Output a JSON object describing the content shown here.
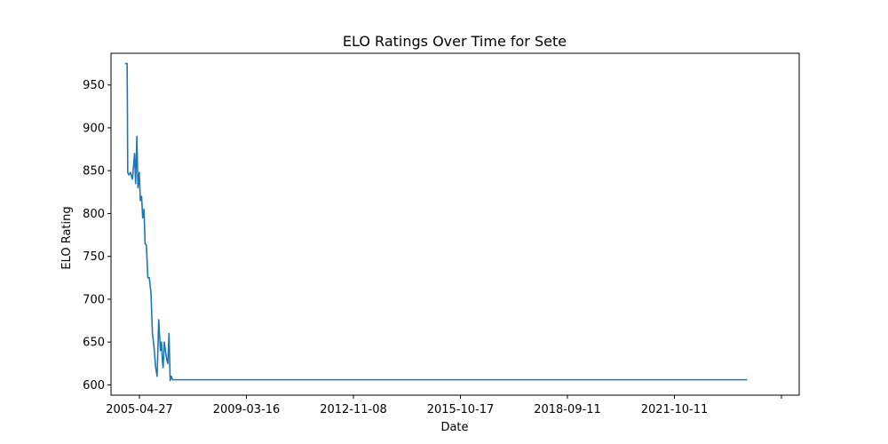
{
  "chart_data": {
    "type": "line",
    "title": "ELO Ratings Over Time for Sete",
    "xlabel": "Date",
    "ylabel": "ELO Rating",
    "x_tick_labels": [
      "2005-04-27",
      "2009-03-16",
      "2012-11-08",
      "2015-10-17",
      "2018-09-11",
      "2021-10-11",
      ""
    ],
    "y_ticks": [
      600,
      650,
      700,
      750,
      800,
      850,
      900,
      950
    ],
    "ylim": [
      588,
      987
    ],
    "xlim": [
      "2004-11-01",
      "2029-03-01"
    ],
    "grid": false,
    "colors": {
      "line": "#1f77b4"
    },
    "series": [
      {
        "x": [
          "2005-05-01",
          "2005-05-28",
          "2005-06-01",
          "2005-06-03",
          "2005-06-05",
          "2005-06-20",
          "2005-07-10",
          "2005-08-05",
          "2005-09-01",
          "2005-09-15",
          "2005-10-01",
          "2005-10-15",
          "2005-11-01",
          "2005-11-15",
          "2005-12-01",
          "2005-12-15",
          "2006-01-01",
          "2006-01-15",
          "2006-02-01",
          "2006-02-20",
          "2006-03-10",
          "2006-04-01",
          "2006-04-20",
          "2006-05-10",
          "2006-06-01",
          "2006-06-20",
          "2006-07-10",
          "2006-08-01",
          "2006-08-15",
          "2006-08-25",
          "2006-09-05",
          "2006-09-20",
          "2006-10-05",
          "2006-10-20",
          "2006-11-05",
          "2006-11-20",
          "2006-12-05",
          "2006-12-20",
          "2007-01-05",
          "2007-01-20",
          "2007-02-05",
          "2007-02-15",
          "2007-03-01",
          "2007-03-10",
          "2007-04-01",
          "2027-05-01"
        ],
        "y": [
          975,
          975,
          921,
          880,
          848,
          845,
          848,
          840,
          870,
          835,
          890,
          830,
          848,
          815,
          820,
          795,
          805,
          765,
          763,
          725,
          725,
          708,
          660,
          645,
          620,
          610,
          676,
          640,
          650,
          630,
          620,
          650,
          640,
          630,
          625,
          660,
          605,
          610,
          606,
          606,
          606,
          606,
          606,
          606,
          606,
          606
        ]
      }
    ]
  }
}
